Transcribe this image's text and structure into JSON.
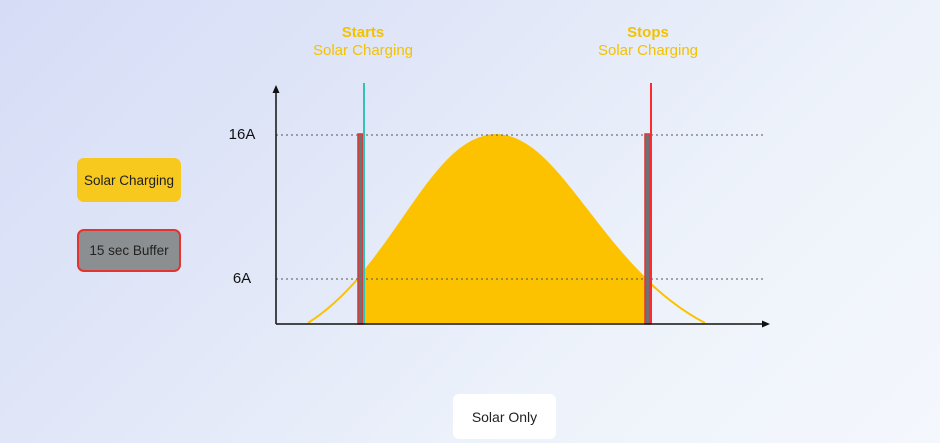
{
  "header": {
    "start": {
      "line1": "Starts",
      "line2": "Solar Charging"
    },
    "stop": {
      "line1": "Stops",
      "line2": "Solar Charging"
    }
  },
  "legend": [
    {
      "label": "Solar Charging",
      "color": "#f7c81e"
    },
    {
      "label": "15 sec Buffer",
      "color": "#8c8f91",
      "border": "#e3342f"
    }
  ],
  "chart_data": {
    "type": "area",
    "y_ticks": [
      {
        "label": "16A",
        "value": 16
      },
      {
        "label": "6A",
        "value": 6
      }
    ],
    "markers": [
      {
        "name": "start",
        "color": "#2ec4b6"
      },
      {
        "name": "stop",
        "color": "#ff2a2a"
      }
    ],
    "fill_color": "#fcc200"
  },
  "mode_button": {
    "label": "Solar Only"
  }
}
